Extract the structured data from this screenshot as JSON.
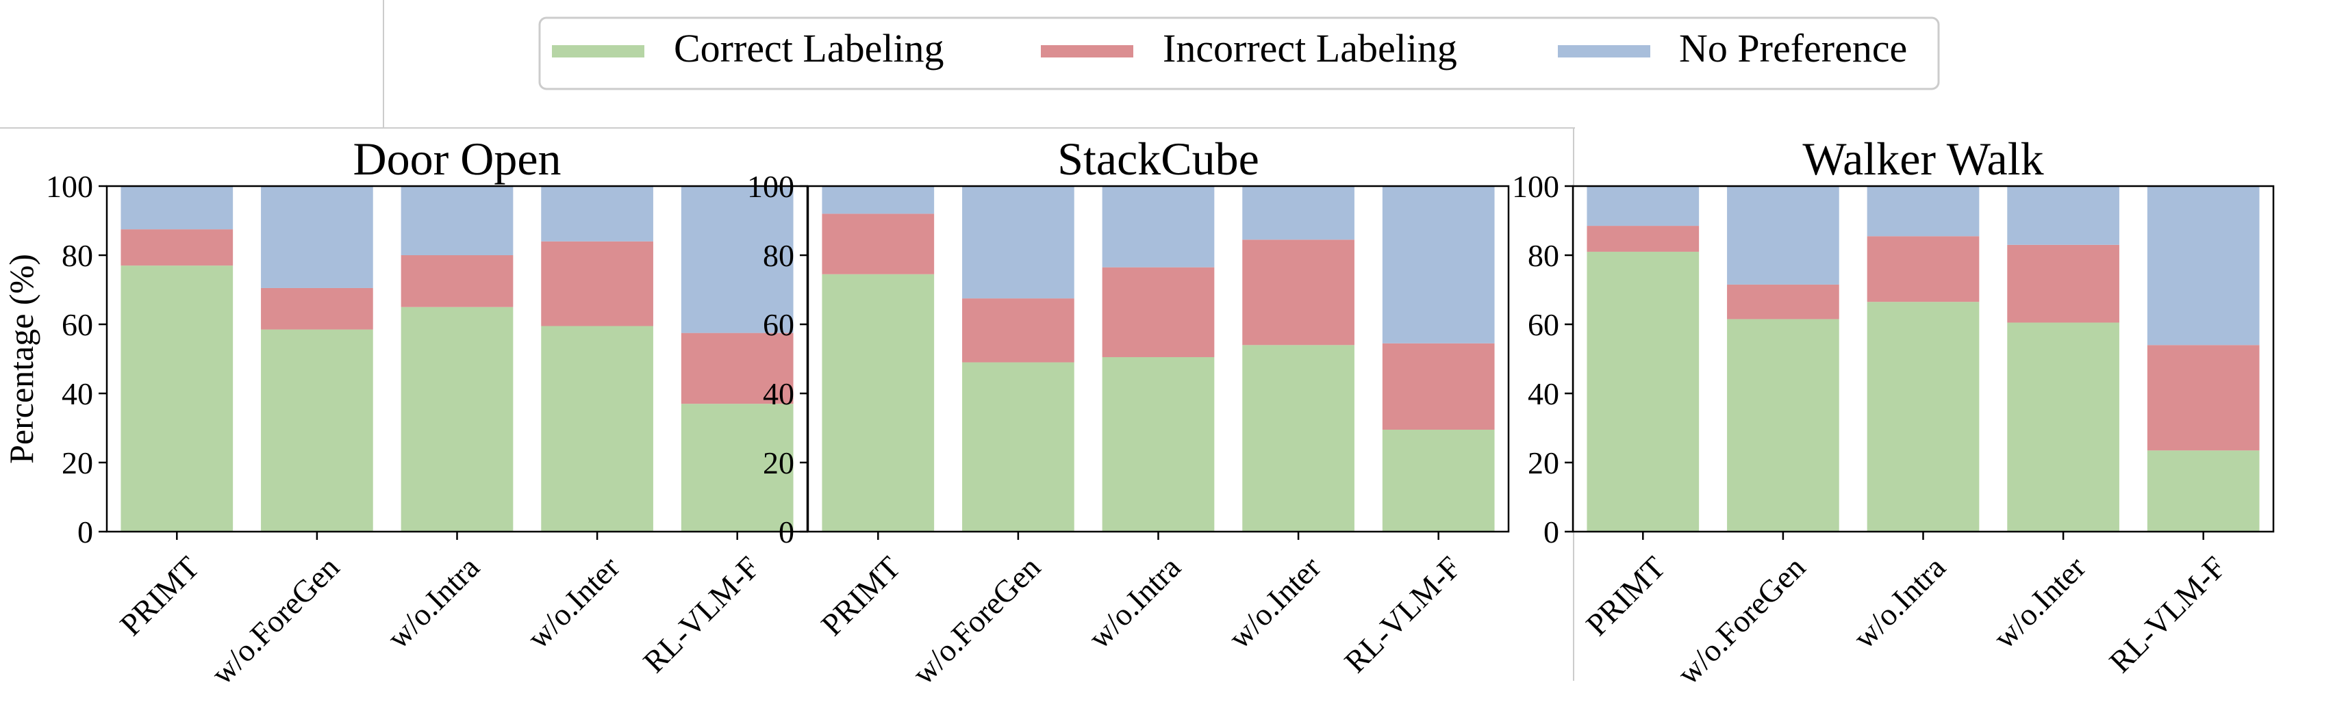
{
  "legend": {
    "items": [
      {
        "label": "Correct Labeling",
        "color": "#b6d5a5"
      },
      {
        "label": "Incorrect Labeling",
        "color": "#db8e91"
      },
      {
        "label": "No Preference",
        "color": "#a8bedb"
      }
    ]
  },
  "colors": {
    "correct": "#b6d5a5",
    "incorrect": "#db8e91",
    "no_preference": "#a8bedb",
    "axis": "#000000"
  },
  "chart_data": [
    {
      "type": "bar",
      "stacked": true,
      "title": "Door Open",
      "ylabel": "Percentage (%)",
      "xlabel": "",
      "ylim": [
        0,
        100
      ],
      "yticks": [
        "0",
        "20",
        "40",
        "60",
        "80",
        "100"
      ],
      "categories": [
        "PRIMT",
        "w/o.ForeGen",
        "w/o.Intra",
        "w/o.Inter",
        "RL-VLM-F"
      ],
      "series": [
        {
          "name": "Correct Labeling",
          "values": [
            77,
            58.5,
            65,
            59.5,
            37
          ]
        },
        {
          "name": "Incorrect Labeling",
          "values": [
            10.5,
            12,
            15,
            24.5,
            20.5
          ]
        },
        {
          "name": "No Preference",
          "values": [
            12.5,
            29.5,
            20,
            16,
            42.5
          ]
        }
      ]
    },
    {
      "type": "bar",
      "stacked": true,
      "title": "StackCube",
      "ylabel": "",
      "xlabel": "",
      "ylim": [
        0,
        100
      ],
      "yticks": [
        "0",
        "20",
        "40",
        "60",
        "80",
        "100"
      ],
      "categories": [
        "PRIMT",
        "w/o.ForeGen",
        "w/o.Intra",
        "w/o.Inter",
        "RL-VLM-F"
      ],
      "series": [
        {
          "name": "Correct Labeling",
          "values": [
            74.5,
            49,
            50.5,
            54,
            29.5
          ]
        },
        {
          "name": "Incorrect Labeling",
          "values": [
            17.5,
            18.5,
            26,
            30.5,
            25
          ]
        },
        {
          "name": "No Preference",
          "values": [
            8,
            32.5,
            23.5,
            15.5,
            45.5
          ]
        }
      ]
    },
    {
      "type": "bar",
      "stacked": true,
      "title": "Walker Walk",
      "ylabel": "",
      "xlabel": "",
      "ylim": [
        0,
        100
      ],
      "yticks": [
        "0",
        "20",
        "40",
        "60",
        "80",
        "100"
      ],
      "categories": [
        "PRIMT",
        "w/o.ForeGen",
        "w/o.Intra",
        "w/o.Inter",
        "RL-VLM-F"
      ],
      "series": [
        {
          "name": "Correct Labeling",
          "values": [
            81,
            61.5,
            66.5,
            60.5,
            23.5
          ]
        },
        {
          "name": "Incorrect Labeling",
          "values": [
            7.5,
            10,
            19,
            22.5,
            30.5
          ]
        },
        {
          "name": "No Preference",
          "values": [
            11.5,
            28.5,
            14.5,
            17,
            46
          ]
        }
      ]
    }
  ]
}
